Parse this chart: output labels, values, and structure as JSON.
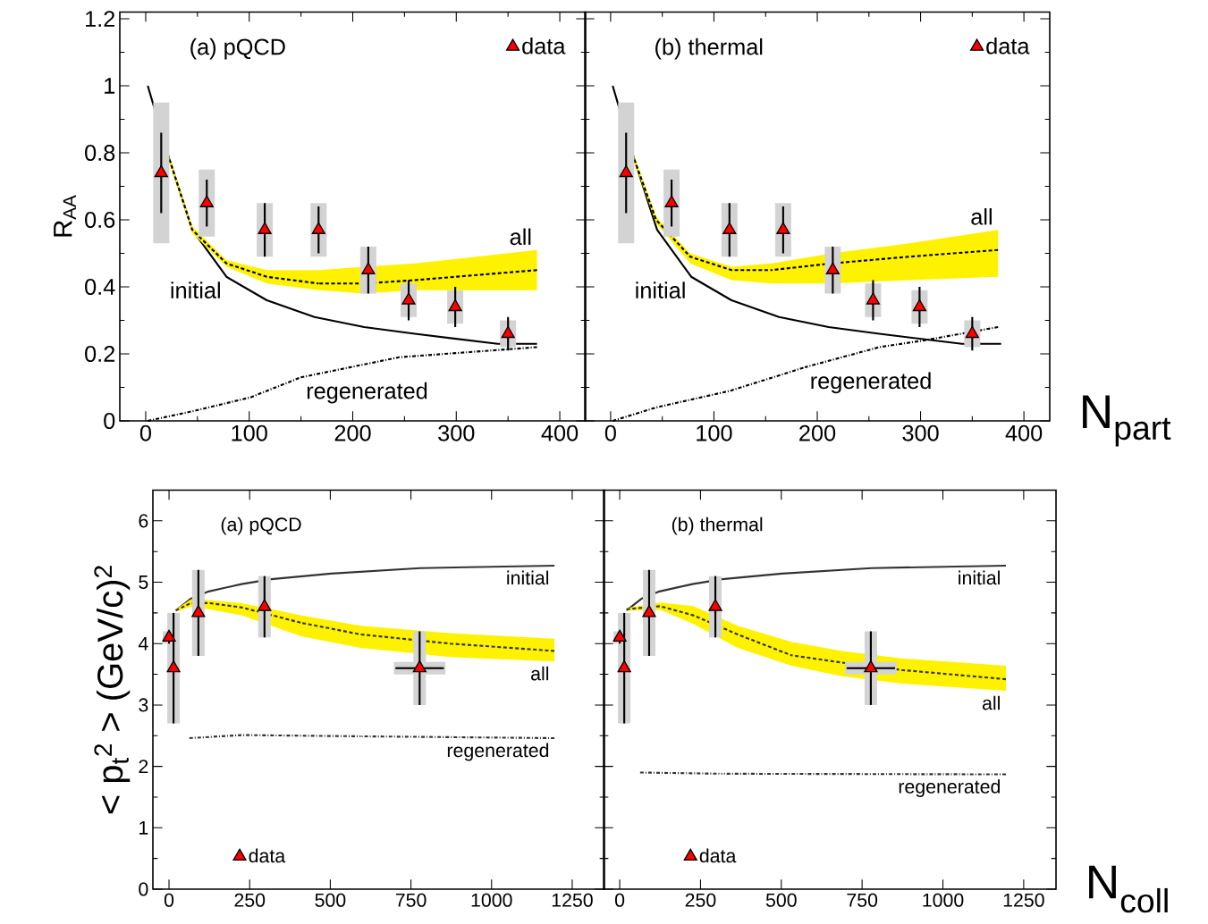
{
  "chart_data": [
    {
      "type": "line",
      "ylabel": "R$_{AA}$",
      "annotations": [
        "(a) pQCD"
      ],
      "xlim": [
        -25,
        425
      ],
      "ylim": [
        0,
        1.22
      ],
      "xticks": [
        0,
        100,
        200,
        300,
        400
      ],
      "yticks": [
        0,
        0.2,
        0.4,
        0.6,
        0.8,
        1,
        1.2
      ],
      "legend": "top right",
      "series": [
        {
          "name": "initial",
          "color": "#000000",
          "line_style": "solid",
          "x": [
            2,
            23,
            45,
            78,
            117,
            163,
            211,
            260,
            340,
            378
          ],
          "values": [
            1.0,
            0.78,
            0.57,
            0.43,
            0.36,
            0.31,
            0.28,
            0.26,
            0.23,
            0.23
          ]
        },
        {
          "name": "all",
          "color": "#000000",
          "line_style": "dashed",
          "x": [
            23,
            45,
            78,
            117,
            167,
            211,
            260,
            378
          ],
          "values": [
            0.78,
            0.57,
            0.47,
            0.43,
            0.41,
            0.41,
            0.42,
            0.45
          ],
          "lower": [
            0.77,
            0.56,
            0.46,
            0.41,
            0.39,
            0.38,
            0.39,
            0.39
          ],
          "upper": [
            0.79,
            0.58,
            0.48,
            0.45,
            0.45,
            0.46,
            0.47,
            0.51
          ]
        },
        {
          "name": "regenerated",
          "color": "#000000",
          "line_style": "dashdot",
          "x": [
            2,
            47,
            101,
            150,
            245,
            378
          ],
          "values": [
            0.0,
            0.03,
            0.07,
            0.13,
            0.19,
            0.22
          ]
        },
        {
          "type": "bar",
          "color": "#d3d3d3",
          "x": [
            15,
            59,
            115,
            167,
            215,
            254,
            299,
            350
          ],
          "base": [
            0.53,
            0.55,
            0.49,
            0.49,
            0.38,
            0.31,
            0.29,
            0.22
          ],
          "values": [
            0.42,
            0.2,
            0.16,
            0.16,
            0.14,
            0.1,
            0.1,
            0.08
          ]
        },
        {
          "type": "scatter",
          "name": "data",
          "color": "#ff0000",
          "marker": "triangle",
          "x": [
            15,
            59,
            115,
            167,
            215,
            254,
            299,
            350
          ],
          "values": [
            0.74,
            0.65,
            0.57,
            0.57,
            0.45,
            0.36,
            0.34,
            0.26
          ],
          "errors": [
            0.12,
            0.07,
            0.08,
            0.07,
            0.07,
            0.06,
            0.06,
            0.05
          ]
        }
      ]
    },
    {
      "type": "line",
      "xlabel": "N$_{part}$",
      "annotations": [
        "(b) thermal"
      ],
      "xlim": [
        -25,
        425
      ],
      "ylim": [
        0,
        1.22
      ],
      "xticks": [
        0,
        100,
        200,
        300,
        400
      ],
      "yticks": [
        0,
        0.2,
        0.4,
        0.6,
        0.8,
        1,
        1.2
      ],
      "tick_labels": "x",
      "legend": "top right",
      "series": [
        {
          "name": "initial",
          "color": "#000000",
          "line_style": "solid",
          "x": [
            2,
            23,
            45,
            78,
            117,
            163,
            211,
            260,
            340,
            378
          ],
          "values": [
            1.0,
            0.78,
            0.57,
            0.43,
            0.36,
            0.31,
            0.28,
            0.26,
            0.23,
            0.23
          ]
        },
        {
          "name": "all",
          "color": "#000000",
          "line_style": "dashed",
          "x": [
            23,
            44,
            77,
            117,
            156,
            214,
            289,
            375
          ],
          "values": [
            0.78,
            0.6,
            0.49,
            0.45,
            0.45,
            0.47,
            0.49,
            0.51
          ],
          "lower": [
            0.77,
            0.59,
            0.47,
            0.42,
            0.41,
            0.41,
            0.42,
            0.43
          ],
          "upper": [
            0.79,
            0.61,
            0.5,
            0.46,
            0.47,
            0.5,
            0.53,
            0.57
          ]
        },
        {
          "name": "regenerated",
          "color": "#000000",
          "line_style": "dashdot",
          "x": [
            2,
            44,
            116,
            188,
            260,
            303,
            375
          ],
          "values": [
            0.0,
            0.04,
            0.09,
            0.16,
            0.22,
            0.24,
            0.28
          ]
        },
        {
          "type": "bar",
          "color": "#d3d3d3",
          "x": [
            15,
            59,
            115,
            167,
            215,
            254,
            299,
            350
          ],
          "base": [
            0.53,
            0.55,
            0.49,
            0.49,
            0.38,
            0.31,
            0.29,
            0.22
          ],
          "values": [
            0.42,
            0.2,
            0.16,
            0.16,
            0.14,
            0.1,
            0.1,
            0.08
          ]
        },
        {
          "type": "scatter",
          "name": "data",
          "color": "#ff0000",
          "marker": "triangle",
          "x": [
            15,
            59,
            115,
            167,
            215,
            254,
            299,
            350
          ],
          "values": [
            0.74,
            0.65,
            0.57,
            0.57,
            0.45,
            0.36,
            0.34,
            0.26
          ],
          "errors": [
            0.12,
            0.07,
            0.08,
            0.07,
            0.07,
            0.06,
            0.06,
            0.05
          ]
        }
      ]
    },
    {
      "type": "line",
      "ylabel": "< p$_{t}$$^{2}$ > (GeV/c)$^{2}$",
      "annotations": [
        "(a) pQCD"
      ],
      "xlim": [
        -50,
        1350
      ],
      "ylim": [
        0,
        6.5
      ],
      "xticks": [
        0,
        250,
        500,
        750,
        1000,
        1250
      ],
      "yticks": [
        0,
        1,
        2,
        3,
        4,
        5,
        6
      ],
      "legend": "bottom left",
      "series": [
        {
          "name": "initial",
          "color": "#333333",
          "line_style": "solid",
          "x": [
            21,
            67,
            123,
            225,
            317,
            502,
            779,
            1195
          ],
          "values": [
            4.54,
            4.73,
            4.85,
            4.97,
            5.05,
            5.14,
            5.23,
            5.27
          ]
        },
        {
          "name": "all",
          "color": "#333333",
          "line_style": "dashed",
          "x": [
            21,
            67,
            123,
            225,
            409,
            594,
            871,
            1195
          ],
          "values": [
            4.54,
            4.66,
            4.66,
            4.59,
            4.34,
            4.15,
            4.0,
            3.88
          ],
          "lower": [
            4.52,
            4.6,
            4.56,
            4.46,
            4.12,
            3.93,
            3.78,
            3.71
          ],
          "upper": [
            4.56,
            4.72,
            4.71,
            4.66,
            4.46,
            4.29,
            4.17,
            4.08
          ]
        },
        {
          "name": "regenerated",
          "color": "#333333",
          "line_style": "dashdot",
          "x": [
            63,
            225,
            594,
            1195
          ],
          "values": [
            2.46,
            2.51,
            2.49,
            2.46
          ]
        },
        {
          "type": "bar",
          "color": "#d3d3d3",
          "x": [
            0,
            14,
            91,
            296,
            777
          ],
          "base": [
            4.0,
            2.7,
            3.8,
            4.1,
            3.0
          ],
          "values": [
            0.2,
            1.8,
            1.4,
            1.0,
            1.2
          ],
          "xerrors": [
            null,
            null,
            null,
            null,
            80
          ]
        },
        {
          "type": "scatter",
          "name": "data",
          "color": "#ff0000",
          "marker": "triangle",
          "x": [
            0,
            14,
            91,
            296,
            777
          ],
          "values": [
            4.1,
            3.6,
            4.5,
            4.6,
            3.6
          ],
          "errors": [
            0.1,
            0.9,
            0.7,
            0.5,
            0.6
          ],
          "xerrors": [
            null,
            null,
            null,
            null,
            75
          ]
        }
      ]
    },
    {
      "type": "line",
      "xlabel": "N$_{coll}$",
      "annotations": [
        "(b) thermal"
      ],
      "xlim": [
        -50,
        1350
      ],
      "ylim": [
        0,
        6.5
      ],
      "xticks": [
        0,
        250,
        500,
        750,
        1000,
        1250
      ],
      "yticks": [
        0,
        1,
        2,
        3,
        4,
        5,
        6
      ],
      "tick_labels": "x",
      "legend": "bottom left",
      "series": [
        {
          "name": "initial",
          "color": "#333333",
          "line_style": "solid",
          "x": [
            21,
            67,
            123,
            225,
            317,
            502,
            779,
            1195
          ],
          "values": [
            4.54,
            4.73,
            4.85,
            4.97,
            5.05,
            5.14,
            5.23,
            5.27
          ]
        },
        {
          "name": "all",
          "color": "#333333",
          "line_style": "dashed",
          "x": [
            21,
            125,
            228,
            365,
            531,
            688,
            872,
            1195
          ],
          "values": [
            4.56,
            4.61,
            4.46,
            4.15,
            3.81,
            3.69,
            3.57,
            3.42
          ],
          "lower": [
            4.54,
            4.55,
            4.32,
            3.93,
            3.64,
            3.47,
            3.35,
            3.23
          ],
          "upper": [
            4.58,
            4.67,
            4.61,
            4.29,
            4.03,
            3.88,
            3.76,
            3.64
          ]
        },
        {
          "name": "regenerated",
          "color": "#333333",
          "line_style": "dashdot",
          "x": [
            63,
            317,
            1195
          ],
          "values": [
            1.9,
            1.88,
            1.87
          ]
        },
        {
          "type": "bar",
          "color": "#d3d3d3",
          "x": [
            0,
            14,
            91,
            296,
            777
          ],
          "base": [
            4.0,
            2.7,
            3.8,
            4.1,
            3.0
          ],
          "values": [
            0.2,
            1.8,
            1.4,
            1.0,
            1.2
          ],
          "xerrors": [
            null,
            null,
            null,
            null,
            80
          ]
        },
        {
          "type": "scatter",
          "name": "data",
          "color": "#ff0000",
          "marker": "triangle",
          "x": [
            0,
            14,
            91,
            296,
            777
          ],
          "values": [
            4.1,
            3.6,
            4.5,
            4.6,
            3.6
          ],
          "errors": [
            0.1,
            0.9,
            0.7,
            0.5,
            0.6
          ],
          "xerrors": [
            null,
            null,
            null,
            null,
            75
          ]
        }
      ]
    }
  ]
}
